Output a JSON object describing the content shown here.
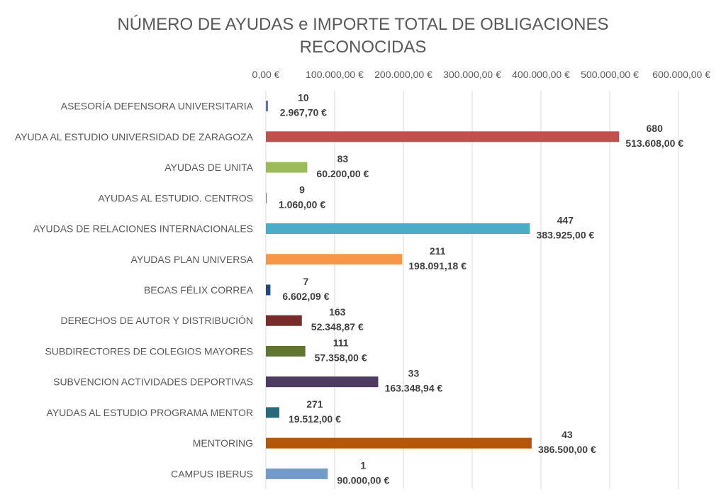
{
  "chart_data": {
    "type": "bar",
    "orientation": "horizontal",
    "title_lines": [
      "NÚMERO DE AYUDAS e IMPORTE TOTAL DE OBLIGACIONES",
      "RECONOCIDAS"
    ],
    "x_axis_position": "top",
    "xlim": [
      0,
      600000
    ],
    "x_ticks": [
      0,
      100000,
      200000,
      300000,
      400000,
      500000,
      600000
    ],
    "x_tick_labels": [
      "0,00 €",
      "100.000,00 €",
      "200.000,00 €",
      "300.000,00 €",
      "400.000,00 €",
      "500.000,00 €",
      "600.000,00 €"
    ],
    "grid": true,
    "legend": "none",
    "categories": [
      "ASESORÍA DEFENSORA UNIVERSITARIA",
      "AYUDA AL ESTUDIO UNIVERSIDAD DE ZARAGOZA",
      "AYUDAS DE UNITA",
      "AYUDAS AL ESTUDIO. CENTROS",
      "AYUDAS DE RELACIONES INTERNACIONALES",
      "AYUDAS PLAN UNIVERSA",
      "BECAS FÉLIX CORREA",
      "DERECHOS DE AUTOR Y DISTRIBUCIÓN",
      "SUBDIRECTORES DE COLEGIOS MAYORES",
      "SUBVENCION ACTIVIDADES DEPORTIVAS",
      "AYUDAS AL ESTUDIO PROGRAMA MENTOR",
      "MENTORING",
      "CAMPUS IBERUS"
    ],
    "values": [
      2967.7,
      513608.0,
      60200.0,
      1060.0,
      383925.0,
      198091.18,
      6602.09,
      52348.87,
      57358.0,
      163348.94,
      19512.0,
      386500.0,
      90000.0
    ],
    "counts": [
      "10",
      "680",
      "83",
      "9",
      "447",
      "211",
      "7",
      "163",
      "111",
      "33",
      "271",
      "43",
      "1"
    ],
    "value_labels": [
      "2.967,70 €",
      "513.608,00 €",
      "60.200,00 €",
      "1.060,00 €",
      "383.925,00 €",
      "198.091,18 €",
      "6.602,09 €",
      "52.348,87 €",
      "57.358,00 €",
      "163.348,94 €",
      "19.512,00 €",
      "386.500,00 €",
      "90.000,00 €"
    ],
    "colors": [
      "#4472c4",
      "#c0504d",
      "#9bbb59",
      "#8064a2",
      "#4bacc6",
      "#f79646",
      "#1f497d",
      "#772c2a",
      "#5f7530",
      "#4d3b62",
      "#276a7c",
      "#b65708",
      "#729aca"
    ]
  }
}
